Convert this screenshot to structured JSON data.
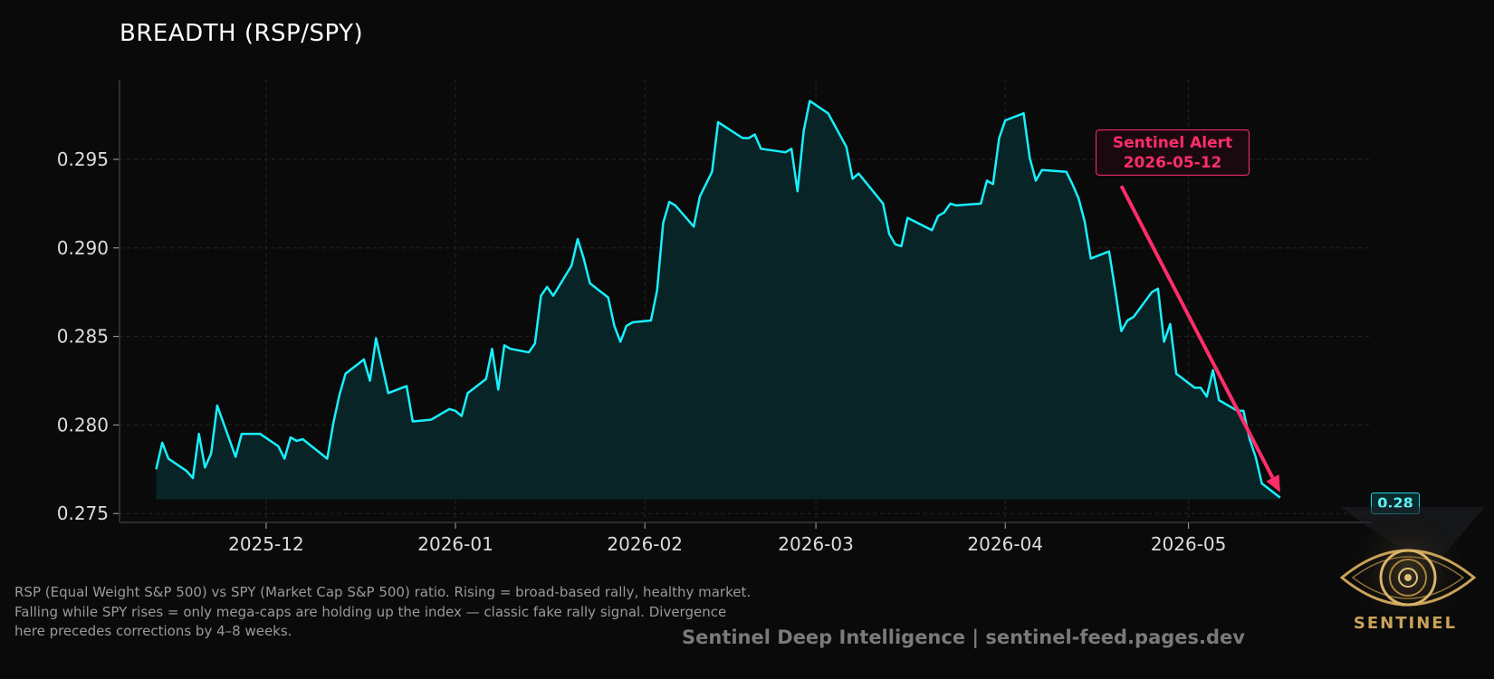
{
  "page": {
    "title": "BREADTH (RSP/SPY)",
    "caption_lines": [
      "RSP (Equal Weight S&P 500) vs SPY (Market Cap S&P 500) ratio. Rising = broad-based rally, healthy market.",
      "Falling while SPY rises = only mega-caps are holding up the index — classic fake rally signal. Divergence",
      "here precedes corrections by 4–8 weeks."
    ],
    "footer": "Sentinel Deep Intelligence  |  sentinel-feed.pages.dev",
    "logo_text": "SENTINEL",
    "logo_icon": "eye-icon"
  },
  "colors": {
    "background": "#0a0a0a",
    "line": "#18f0ff",
    "fill": "#0a2628",
    "alert": "#ff2d6a",
    "grid": "#262626",
    "logo_gold": "#c9a25a"
  },
  "chart_data": {
    "type": "area",
    "title": "BREADTH (RSP/SPY)",
    "xlabel": "",
    "ylabel": "",
    "x_ticks": [
      "2025-12",
      "2026-01",
      "2026-02",
      "2026-03",
      "2026-04",
      "2026-05"
    ],
    "x_tick_dates": [
      "2025-12-01",
      "2026-01-01",
      "2026-02-01",
      "2026-03-01",
      "2026-04-01",
      "2026-05-01"
    ],
    "y_ticks": [
      "0.275",
      "0.280",
      "0.285",
      "0.290",
      "0.295"
    ],
    "y_tick_values": [
      0.275,
      0.28,
      0.285,
      0.29,
      0.295
    ],
    "xlim": [
      "2025-11-07",
      "2026-05-31"
    ],
    "ylim": [
      0.2745,
      0.2995
    ],
    "grid": true,
    "fill_baseline": 0.2758,
    "series": [
      {
        "values": [
          [
            "2025-11-13",
            0.2775
          ],
          [
            "2025-11-14",
            0.279
          ],
          [
            "2025-11-15",
            0.2781
          ],
          [
            "2025-11-18",
            0.2774
          ],
          [
            "2025-11-19",
            0.277
          ],
          [
            "2025-11-20",
            0.2795
          ],
          [
            "2025-11-21",
            0.2776
          ],
          [
            "2025-11-22",
            0.2784
          ],
          [
            "2025-11-23",
            0.2811
          ],
          [
            "2025-11-26",
            0.2782
          ],
          [
            "2025-11-27",
            0.2795
          ],
          [
            "2025-11-30",
            0.2795
          ],
          [
            "2025-12-03",
            0.2788
          ],
          [
            "2025-12-04",
            0.2781
          ],
          [
            "2025-12-05",
            0.2793
          ],
          [
            "2025-12-06",
            0.2791
          ],
          [
            "2025-12-07",
            0.2792
          ],
          [
            "2025-12-11",
            0.2781
          ],
          [
            "2025-12-12",
            0.2801
          ],
          [
            "2025-12-13",
            0.2817
          ],
          [
            "2025-12-14",
            0.2829
          ],
          [
            "2025-12-17",
            0.2837
          ],
          [
            "2025-12-18",
            0.2825
          ],
          [
            "2025-12-19",
            0.2849
          ],
          [
            "2025-12-21",
            0.2818
          ],
          [
            "2025-12-24",
            0.2822
          ],
          [
            "2025-12-25",
            0.2802
          ],
          [
            "2025-12-28",
            0.2803
          ],
          [
            "2025-12-31",
            0.2809
          ],
          [
            "2026-01-01",
            0.2808
          ],
          [
            "2026-01-02",
            0.2805
          ],
          [
            "2026-01-03",
            0.2818
          ],
          [
            "2026-01-06",
            0.2826
          ],
          [
            "2026-01-07",
            0.2843
          ],
          [
            "2026-01-08",
            0.282
          ],
          [
            "2026-01-09",
            0.2845
          ],
          [
            "2026-01-10",
            0.2843
          ],
          [
            "2026-01-13",
            0.2841
          ],
          [
            "2026-01-14",
            0.2846
          ],
          [
            "2026-01-15",
            0.2873
          ],
          [
            "2026-01-16",
            0.2878
          ],
          [
            "2026-01-17",
            0.2873
          ],
          [
            "2026-01-20",
            0.289
          ],
          [
            "2026-01-21",
            0.2905
          ],
          [
            "2026-01-22",
            0.2894
          ],
          [
            "2026-01-23",
            0.288
          ],
          [
            "2026-01-26",
            0.2872
          ],
          [
            "2026-01-27",
            0.2856
          ],
          [
            "2026-01-28",
            0.2847
          ],
          [
            "2026-01-29",
            0.2856
          ],
          [
            "2026-01-30",
            0.2858
          ],
          [
            "2026-02-02",
            0.2859
          ],
          [
            "2026-02-03",
            0.2876
          ],
          [
            "2026-02-04",
            0.2914
          ],
          [
            "2026-02-05",
            0.2926
          ],
          [
            "2026-02-06",
            0.2924
          ],
          [
            "2026-02-09",
            0.2912
          ],
          [
            "2026-02-10",
            0.2929
          ],
          [
            "2026-02-12",
            0.2943
          ],
          [
            "2026-02-13",
            0.2971
          ],
          [
            "2026-02-17",
            0.2962
          ],
          [
            "2026-02-18",
            0.2962
          ],
          [
            "2026-02-19",
            0.2964
          ],
          [
            "2026-02-20",
            0.2956
          ],
          [
            "2026-02-24",
            0.2954
          ],
          [
            "2026-02-25",
            0.2956
          ],
          [
            "2026-02-26",
            0.2932
          ],
          [
            "2026-02-27",
            0.2966
          ],
          [
            "2026-02-28",
            0.2983
          ],
          [
            "2026-03-03",
            0.2976
          ],
          [
            "2026-03-06",
            0.2957
          ],
          [
            "2026-03-07",
            0.2939
          ],
          [
            "2026-03-08",
            0.2942
          ],
          [
            "2026-03-12",
            0.2925
          ],
          [
            "2026-03-13",
            0.2908
          ],
          [
            "2026-03-14",
            0.2902
          ],
          [
            "2026-03-15",
            0.2901
          ],
          [
            "2026-03-16",
            0.2917
          ],
          [
            "2026-03-20",
            0.291
          ],
          [
            "2026-03-21",
            0.2918
          ],
          [
            "2026-03-22",
            0.292
          ],
          [
            "2026-03-23",
            0.2925
          ],
          [
            "2026-03-24",
            0.2924
          ],
          [
            "2026-03-28",
            0.2925
          ],
          [
            "2026-03-29",
            0.2938
          ],
          [
            "2026-03-30",
            0.2936
          ],
          [
            "2026-03-31",
            0.2962
          ],
          [
            "2026-04-01",
            0.2972
          ],
          [
            "2026-04-04",
            0.2976
          ],
          [
            "2026-04-05",
            0.2951
          ],
          [
            "2026-04-06",
            0.2938
          ],
          [
            "2026-04-07",
            0.2944
          ],
          [
            "2026-04-11",
            0.2943
          ],
          [
            "2026-04-12",
            0.2936
          ],
          [
            "2026-04-13",
            0.2928
          ],
          [
            "2026-04-14",
            0.2915
          ],
          [
            "2026-04-15",
            0.2894
          ],
          [
            "2026-04-18",
            0.2898
          ],
          [
            "2026-04-19",
            0.2876
          ],
          [
            "2026-04-20",
            0.2853
          ],
          [
            "2026-04-21",
            0.2859
          ],
          [
            "2026-04-22",
            0.2861
          ],
          [
            "2026-04-25",
            0.2875
          ],
          [
            "2026-04-26",
            0.2877
          ],
          [
            "2026-04-27",
            0.2847
          ],
          [
            "2026-04-28",
            0.2857
          ],
          [
            "2026-04-29",
            0.2829
          ],
          [
            "2026-05-02",
            0.2821
          ],
          [
            "2026-05-03",
            0.2821
          ],
          [
            "2026-05-04",
            0.2816
          ],
          [
            "2026-05-05",
            0.2831
          ],
          [
            "2026-05-06",
            0.2814
          ],
          [
            "2026-05-09",
            0.2808
          ],
          [
            "2026-05-10",
            0.2808
          ],
          [
            "2026-05-11",
            0.2792
          ],
          [
            "2026-05-12",
            0.2782
          ],
          [
            "2026-05-13",
            0.2767
          ],
          [
            "2026-05-16",
            0.2759
          ]
        ]
      }
    ],
    "annotations": [
      {
        "type": "arrow",
        "label_lines": [
          "Sentinel Alert",
          "2026-05-12"
        ],
        "target_date": "2026-05-16",
        "target_value": 0.2762,
        "tail_date": "2026-04-20",
        "tail_value": 0.2935
      }
    ],
    "last_value_label": "0.28"
  }
}
